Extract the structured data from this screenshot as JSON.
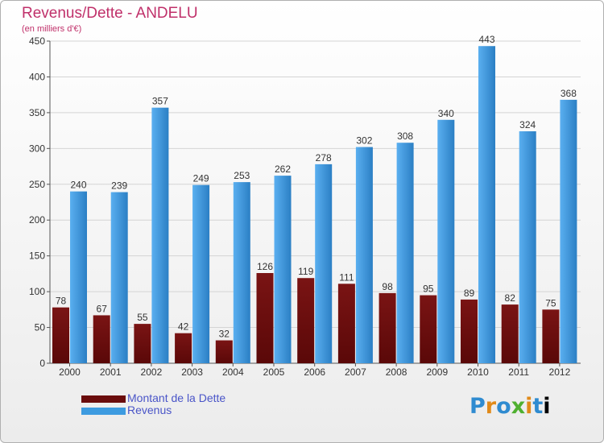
{
  "colors": {
    "debt": "#7a1010",
    "revenue": "#3d9be0",
    "title": "#c0306a",
    "legend_text": "#4a55c8"
  },
  "chart_data": {
    "type": "bar",
    "title": "Revenus/Dette - ANDELU",
    "subtitle": "(en milliers d'€)",
    "categories": [
      "2000",
      "2001",
      "2002",
      "2003",
      "2004",
      "2005",
      "2006",
      "2007",
      "2008",
      "2009",
      "2010",
      "2011",
      "2012"
    ],
    "series": [
      {
        "name": "Montant de la Dette",
        "values": [
          78,
          67,
          55,
          42,
          32,
          126,
          119,
          111,
          98,
          95,
          89,
          82,
          75
        ]
      },
      {
        "name": "Revenus",
        "values": [
          240,
          239,
          357,
          249,
          253,
          262,
          278,
          302,
          308,
          340,
          443,
          324,
          368
        ]
      }
    ],
    "ylim": [
      0,
      450
    ],
    "yticks": [
      0,
      50,
      100,
      150,
      200,
      250,
      300,
      350,
      400,
      450
    ],
    "grid": true,
    "legend_position": "bottom-left"
  },
  "logo": {
    "letters": [
      "P",
      "r",
      "o",
      "x",
      "i",
      "t",
      "i"
    ]
  }
}
